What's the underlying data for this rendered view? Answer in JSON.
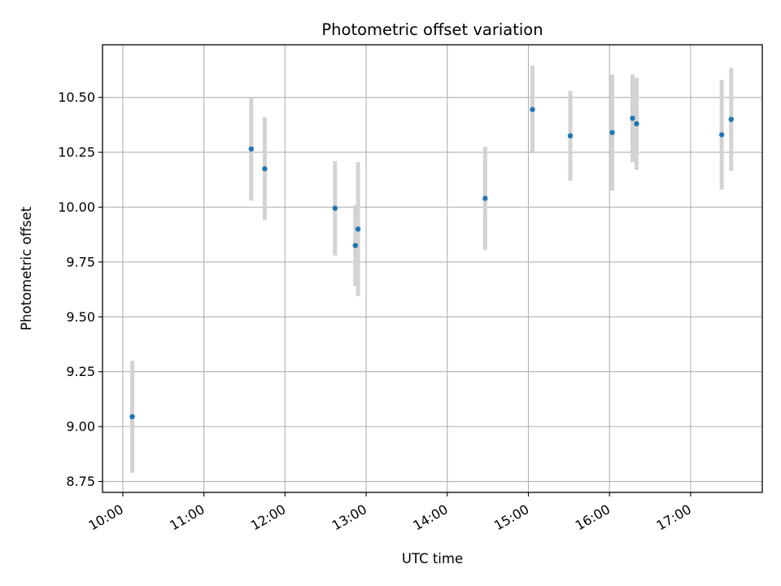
{
  "chart_data": {
    "type": "scatter",
    "title": "Photometric offset variation",
    "xlabel": "UTC time",
    "ylabel": "Photometric offset",
    "grid": true,
    "xlim": [
      "09:45",
      "17:53"
    ],
    "ylim": [
      8.7,
      10.74
    ],
    "x_ticks": [
      "10:00",
      "11:00",
      "12:00",
      "13:00",
      "14:00",
      "15:00",
      "16:00",
      "17:00"
    ],
    "y_ticks": [
      "8.75",
      "9.00",
      "9.25",
      "9.50",
      "9.75",
      "10.00",
      "10.25",
      "10.50"
    ],
    "marker_color": "#1f77b4",
    "errorbar_color": "#d3d3d3",
    "series": [
      {
        "points": [
          {
            "x": "10:07",
            "y": 9.045,
            "err": 0.255
          },
          {
            "x": "11:35",
            "y": 10.265,
            "err": 0.235
          },
          {
            "x": "11:45",
            "y": 10.175,
            "err": 0.235
          },
          {
            "x": "12:37",
            "y": 9.995,
            "err": 0.215
          },
          {
            "x": "12:52",
            "y": 9.825,
            "err": 0.185
          },
          {
            "x": "12:54",
            "y": 9.9,
            "err": 0.305
          },
          {
            "x": "14:28",
            "y": 10.04,
            "err": 0.235
          },
          {
            "x": "15:03",
            "y": 10.445,
            "err": 0.2
          },
          {
            "x": "15:31",
            "y": 10.325,
            "err": 0.205
          },
          {
            "x": "16:02",
            "y": 10.34,
            "err": 0.265
          },
          {
            "x": "16:17",
            "y": 10.405,
            "err": 0.2
          },
          {
            "x": "16:20",
            "y": 10.38,
            "err": 0.21
          },
          {
            "x": "17:23",
            "y": 10.33,
            "err": 0.25
          },
          {
            "x": "17:30",
            "y": 10.4,
            "err": 0.235
          }
        ]
      }
    ]
  }
}
